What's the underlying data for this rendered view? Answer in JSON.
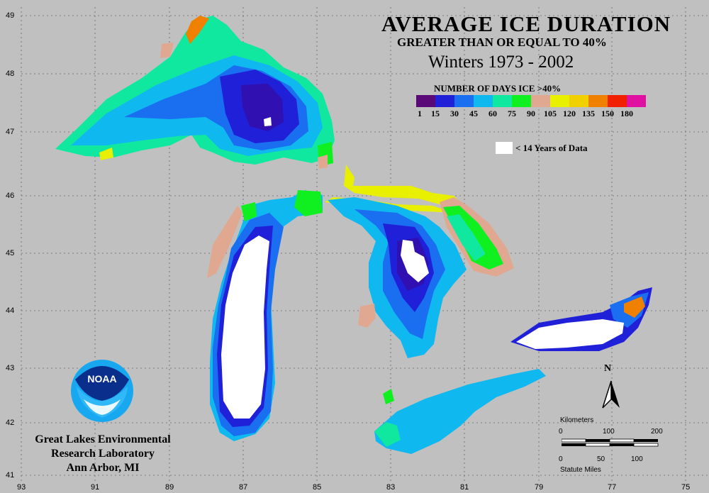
{
  "title": "AVERAGE ICE DURATION",
  "subtitle": "GREATER THAN OR EQUAL TO 40%",
  "period": "Winters 1973  - 2002",
  "legend": {
    "title": "NUMBER OF DAYS ICE >40%",
    "ticks": [
      "1",
      "15",
      "30",
      "45",
      "60",
      "75",
      "90",
      "105",
      "120",
      "135",
      "150",
      "180"
    ],
    "colors": [
      "#5a0a78",
      "#2020d8",
      "#1a6ef0",
      "#10b8f0",
      "#10e8a0",
      "#10f020",
      "#e0a890",
      "#e8f000",
      "#f0d000",
      "#f08000",
      "#f02000",
      "#e010a0"
    ],
    "no_data_label": "< 14 Years of Data",
    "no_data_color": "#ffffff"
  },
  "latitude_labels": [
    "49",
    "48",
    "47",
    "46",
    "45",
    "44",
    "43",
    "42",
    "41"
  ],
  "longitude_labels": [
    "93",
    "91",
    "89",
    "87",
    "85",
    "83",
    "81",
    "79",
    "77",
    "75"
  ],
  "logo": {
    "text": "NOAA"
  },
  "organization": [
    "Great Lakes Environmental",
    "Research Laboratory",
    "Ann Arbor, MI"
  ],
  "north_arrow": "N",
  "scale_bar": {
    "km_title": "Kilometers",
    "km_ticks": [
      "0",
      "100",
      "200"
    ],
    "mi_ticks": [
      "0",
      "50",
      "100"
    ],
    "mi_title": "Statute Miles"
  }
}
